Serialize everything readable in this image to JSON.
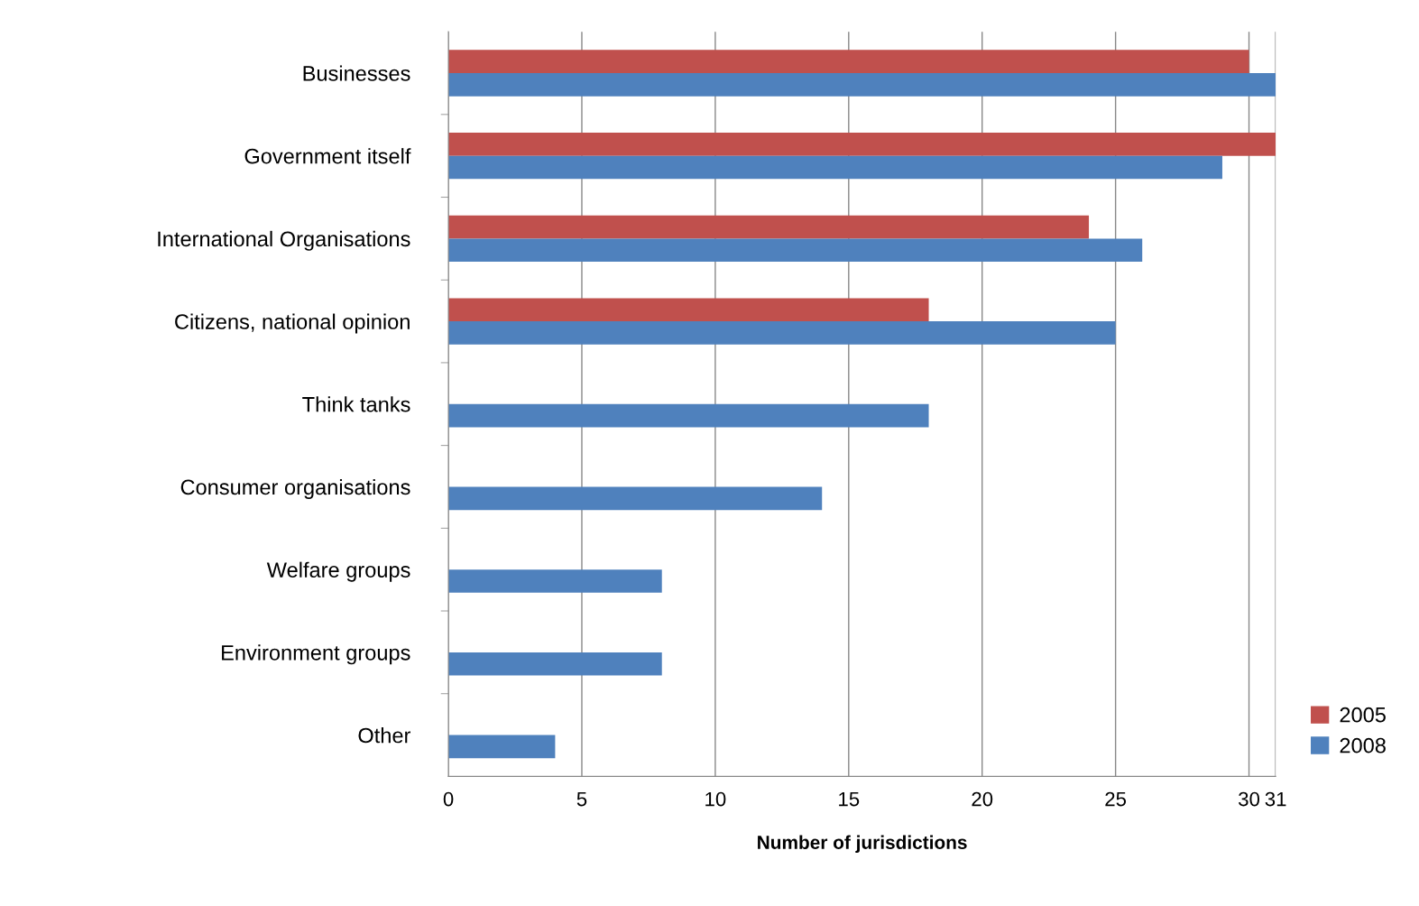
{
  "chart_data": {
    "type": "bar",
    "orientation": "horizontal",
    "xlabel": "Number of jurisdictions",
    "categories": [
      "Businesses",
      "Government itself",
      "International Organisations",
      "Citizens, national opinion",
      "Think tanks",
      "Consumer organisations",
      "Welfare groups",
      "Environment groups",
      "Other"
    ],
    "series": [
      {
        "name": "2005",
        "color": "#c0504d",
        "values": [
          30,
          31,
          24,
          18,
          null,
          null,
          null,
          null,
          null
        ]
      },
      {
        "name": "2008",
        "color": "#4f81bd",
        "values": [
          31,
          29,
          26,
          25,
          18,
          14,
          8,
          8,
          4
        ]
      }
    ],
    "xlim": [
      0,
      31
    ],
    "xticks": [
      0,
      5,
      10,
      15,
      20,
      25,
      30,
      31
    ],
    "grid": "x",
    "legend": "bottom right"
  }
}
